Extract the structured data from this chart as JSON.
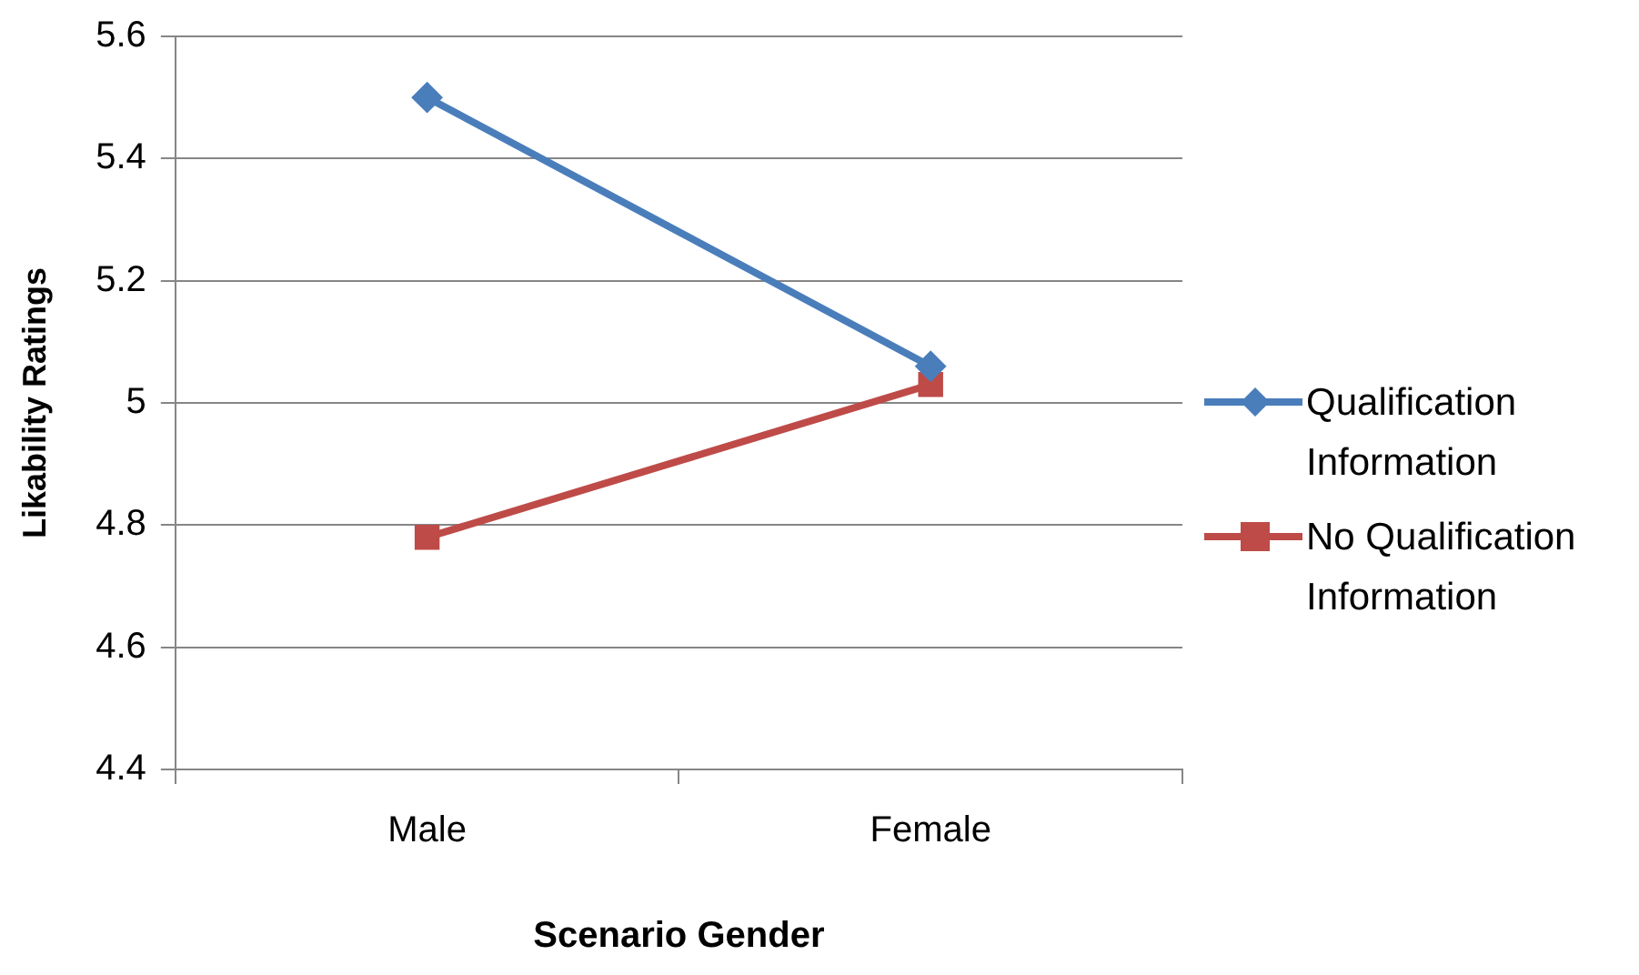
{
  "chart_data": {
    "type": "line",
    "xlabel": "Scenario Gender",
    "ylabel": "Likability Ratings",
    "categories": [
      "Male",
      "Female"
    ],
    "series": [
      {
        "name": "Qualification Information",
        "color": "#4a7ebb",
        "marker": "diamond",
        "values": [
          5.5,
          5.06
        ]
      },
      {
        "name": "No Qualification Information",
        "color": "#be4b48",
        "marker": "square",
        "values": [
          4.78,
          5.03
        ]
      }
    ],
    "ylim": [
      4.4,
      5.6
    ],
    "yticks": [
      4.4,
      4.6,
      4.8,
      5,
      5.2,
      5.4,
      5.6
    ],
    "grid": "y",
    "legend": "right"
  }
}
